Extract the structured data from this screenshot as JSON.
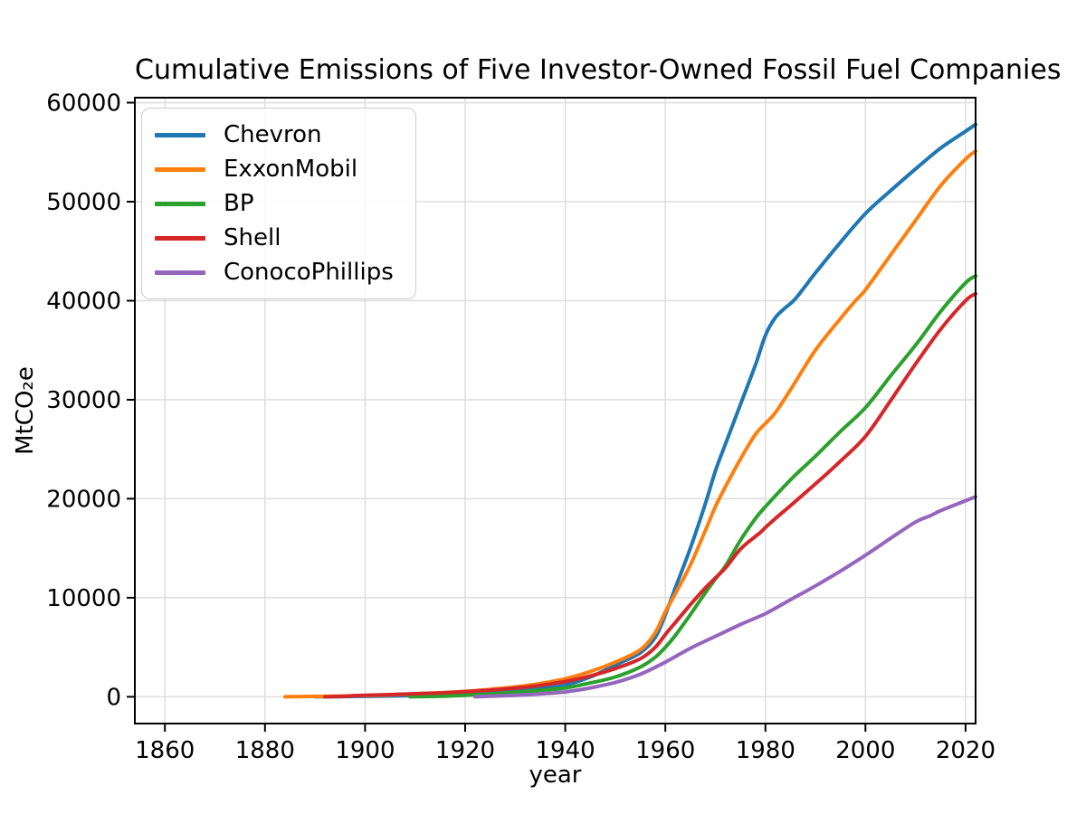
{
  "chart_data": {
    "type": "line",
    "title": "Cumulative Emissions of Five Investor-Owned Fossil Fuel Companies",
    "xlabel": "year",
    "ylabel": "MtCO₂e",
    "xlim": [
      1854,
      2022
    ],
    "ylim": [
      -2700,
      60500
    ],
    "xticks": [
      1860,
      1880,
      1900,
      1920,
      1940,
      1960,
      1980,
      2000,
      2020
    ],
    "yticks": [
      0,
      10000,
      20000,
      30000,
      40000,
      50000,
      60000
    ],
    "grid": true,
    "legend_position": "upper left",
    "series": [
      {
        "name": "Chevron",
        "color": "#1f77b4",
        "points": [
          [
            1890,
            0
          ],
          [
            1895,
            20
          ],
          [
            1900,
            50
          ],
          [
            1905,
            85
          ],
          [
            1910,
            130
          ],
          [
            1915,
            190
          ],
          [
            1920,
            280
          ],
          [
            1925,
            400
          ],
          [
            1930,
            560
          ],
          [
            1935,
            820
          ],
          [
            1940,
            1200
          ],
          [
            1945,
            2000
          ],
          [
            1950,
            3200
          ],
          [
            1955,
            4450
          ],
          [
            1958,
            6000
          ],
          [
            1960,
            8300
          ],
          [
            1962,
            11000
          ],
          [
            1965,
            15000
          ],
          [
            1968,
            19500
          ],
          [
            1970,
            22800
          ],
          [
            1972,
            25500
          ],
          [
            1975,
            29500
          ],
          [
            1978,
            33500
          ],
          [
            1980,
            36500
          ],
          [
            1982,
            38300
          ],
          [
            1984,
            39300
          ],
          [
            1986,
            40200
          ],
          [
            1990,
            42800
          ],
          [
            1995,
            45900
          ],
          [
            2000,
            48800
          ],
          [
            2005,
            51100
          ],
          [
            2010,
            53300
          ],
          [
            2015,
            55400
          ],
          [
            2020,
            57100
          ],
          [
            2022,
            57800
          ]
        ]
      },
      {
        "name": "ExxonMobil",
        "color": "#ff7f0e",
        "points": [
          [
            1884,
            0
          ],
          [
            1890,
            40
          ],
          [
            1895,
            80
          ],
          [
            1900,
            130
          ],
          [
            1905,
            200
          ],
          [
            1910,
            300
          ],
          [
            1915,
            400
          ],
          [
            1920,
            550
          ],
          [
            1925,
            750
          ],
          [
            1930,
            1000
          ],
          [
            1935,
            1350
          ],
          [
            1940,
            1830
          ],
          [
            1945,
            2550
          ],
          [
            1950,
            3500
          ],
          [
            1955,
            4750
          ],
          [
            1958,
            6500
          ],
          [
            1960,
            8600
          ],
          [
            1962,
            10400
          ],
          [
            1965,
            13300
          ],
          [
            1968,
            16800
          ],
          [
            1970,
            19200
          ],
          [
            1972,
            21200
          ],
          [
            1975,
            24000
          ],
          [
            1978,
            26500
          ],
          [
            1980,
            27600
          ],
          [
            1982,
            28700
          ],
          [
            1985,
            31000
          ],
          [
            1990,
            35000
          ],
          [
            1995,
            38200
          ],
          [
            1998,
            40000
          ],
          [
            2000,
            41100
          ],
          [
            2005,
            44600
          ],
          [
            2010,
            48100
          ],
          [
            2015,
            51600
          ],
          [
            2020,
            54300
          ],
          [
            2022,
            55100
          ]
        ]
      },
      {
        "name": "BP",
        "color": "#2ca02c",
        "points": [
          [
            1909,
            0
          ],
          [
            1915,
            60
          ],
          [
            1920,
            160
          ],
          [
            1925,
            300
          ],
          [
            1930,
            460
          ],
          [
            1935,
            650
          ],
          [
            1940,
            900
          ],
          [
            1945,
            1400
          ],
          [
            1950,
            2000
          ],
          [
            1955,
            3000
          ],
          [
            1958,
            4000
          ],
          [
            1960,
            5000
          ],
          [
            1962,
            6200
          ],
          [
            1965,
            8300
          ],
          [
            1968,
            10500
          ],
          [
            1970,
            11900
          ],
          [
            1972,
            13200
          ],
          [
            1975,
            15800
          ],
          [
            1978,
            18000
          ],
          [
            1980,
            19200
          ],
          [
            1985,
            21900
          ],
          [
            1990,
            24300
          ],
          [
            1995,
            26800
          ],
          [
            2000,
            29200
          ],
          [
            2005,
            32400
          ],
          [
            2010,
            35500
          ],
          [
            2015,
            38900
          ],
          [
            2020,
            41800
          ],
          [
            2022,
            42500
          ]
        ]
      },
      {
        "name": "Shell",
        "color": "#d62728",
        "points": [
          [
            1892,
            0
          ],
          [
            1895,
            40
          ],
          [
            1900,
            150
          ],
          [
            1905,
            220
          ],
          [
            1910,
            310
          ],
          [
            1915,
            400
          ],
          [
            1920,
            520
          ],
          [
            1925,
            680
          ],
          [
            1930,
            880
          ],
          [
            1935,
            1150
          ],
          [
            1940,
            1550
          ],
          [
            1945,
            2100
          ],
          [
            1950,
            2850
          ],
          [
            1955,
            3840
          ],
          [
            1958,
            5000
          ],
          [
            1960,
            6300
          ],
          [
            1962,
            7500
          ],
          [
            1965,
            9300
          ],
          [
            1968,
            11000
          ],
          [
            1970,
            12000
          ],
          [
            1972,
            13000
          ],
          [
            1975,
            14900
          ],
          [
            1978,
            16200
          ],
          [
            1979,
            16600
          ],
          [
            1980,
            17100
          ],
          [
            1982,
            18000
          ],
          [
            1985,
            19300
          ],
          [
            1990,
            21500
          ],
          [
            1995,
            23800
          ],
          [
            2000,
            26300
          ],
          [
            2005,
            29900
          ],
          [
            2010,
            33600
          ],
          [
            2015,
            37100
          ],
          [
            2020,
            40000
          ],
          [
            2022,
            40700
          ]
        ]
      },
      {
        "name": "ConocoPhillips",
        "color": "#9467bd",
        "points": [
          [
            1922,
            0
          ],
          [
            1925,
            60
          ],
          [
            1930,
            160
          ],
          [
            1935,
            300
          ],
          [
            1940,
            500
          ],
          [
            1945,
            900
          ],
          [
            1950,
            1450
          ],
          [
            1955,
            2280
          ],
          [
            1960,
            3500
          ],
          [
            1965,
            4900
          ],
          [
            1970,
            6100
          ],
          [
            1975,
            7300
          ],
          [
            1980,
            8400
          ],
          [
            1985,
            9800
          ],
          [
            1990,
            11200
          ],
          [
            1995,
            12700
          ],
          [
            2000,
            14300
          ],
          [
            2005,
            16000
          ],
          [
            2010,
            17650
          ],
          [
            2013,
            18300
          ],
          [
            2015,
            18800
          ],
          [
            2020,
            19800
          ],
          [
            2022,
            20200
          ]
        ]
      }
    ]
  }
}
